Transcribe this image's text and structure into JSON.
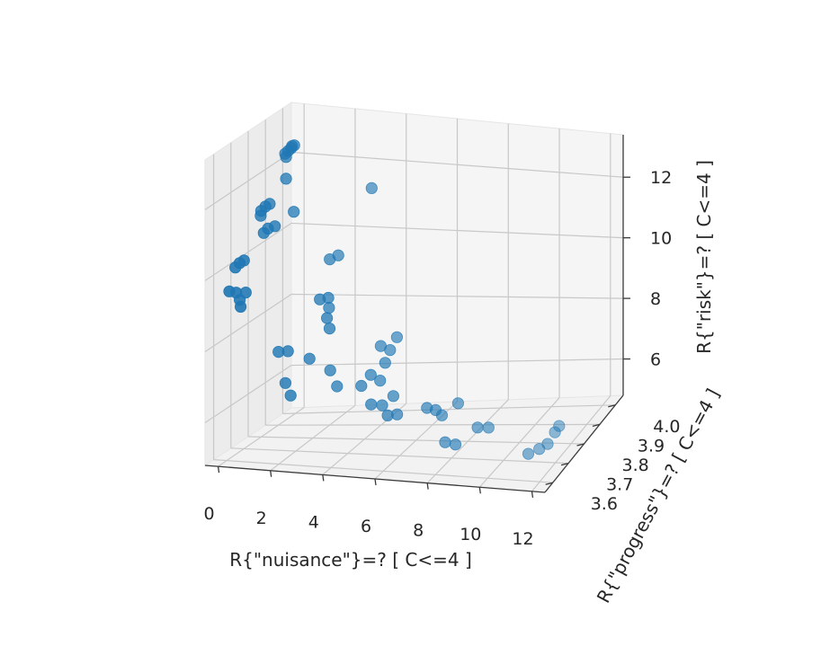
{
  "chart_data": {
    "type": "scatter",
    "projection": "3d",
    "xlabel": "R{\"nuisance\"}=? [ C<=4 ]",
    "ylabel": "R{\"progress\"}=? [ C<=4 ]",
    "zlabel": "R{\"risk\"}=? [ C<=4 ]",
    "x_ticks": [
      "0",
      "2",
      "4",
      "6",
      "8",
      "10",
      "12"
    ],
    "y_ticks": [
      "3.6",
      "3.7",
      "3.8",
      "3.9",
      "4.0"
    ],
    "z_ticks": [
      "6",
      "8",
      "10",
      "12"
    ],
    "xlim": [
      -0.5,
      12.5
    ],
    "ylim": [
      3.55,
      4.05
    ],
    "zlim": [
      4.8,
      13.4
    ],
    "grid": true,
    "marker_color": "#1f77b4",
    "points": [
      {
        "x": 0.05,
        "y": 3.95,
        "z": 12.4
      },
      {
        "x": 0.1,
        "y": 3.96,
        "z": 12.45
      },
      {
        "x": 0.15,
        "y": 3.97,
        "z": 12.5
      },
      {
        "x": 0.0,
        "y": 3.94,
        "z": 12.35
      },
      {
        "x": 0.2,
        "y": 3.95,
        "z": 12.55
      },
      {
        "x": 0.1,
        "y": 3.93,
        "z": 12.3
      },
      {
        "x": 0.3,
        "y": 3.9,
        "z": 11.8
      },
      {
        "x": 0.8,
        "y": 3.87,
        "z": 11.0
      },
      {
        "x": 0.0,
        "y": 3.8,
        "z": 11.2
      },
      {
        "x": 0.1,
        "y": 3.81,
        "z": 11.3
      },
      {
        "x": 0.2,
        "y": 3.82,
        "z": 11.35
      },
      {
        "x": 0.05,
        "y": 3.79,
        "z": 11.1
      },
      {
        "x": 0.4,
        "y": 3.78,
        "z": 10.8
      },
      {
        "x": 0.3,
        "y": 3.77,
        "z": 10.7
      },
      {
        "x": 0.6,
        "y": 3.79,
        "z": 10.85
      },
      {
        "x": 0.0,
        "y": 3.65,
        "z": 10.1
      },
      {
        "x": 0.1,
        "y": 3.66,
        "z": 10.2
      },
      {
        "x": 0.2,
        "y": 3.67,
        "z": 10.25
      },
      {
        "x": 0.1,
        "y": 3.6,
        "z": 9.6
      },
      {
        "x": 0.3,
        "y": 3.61,
        "z": 9.55
      },
      {
        "x": 0.5,
        "y": 3.6,
        "z": 9.4
      },
      {
        "x": 0.6,
        "y": 3.62,
        "z": 9.55
      },
      {
        "x": 0.6,
        "y": 3.59,
        "z": 9.25
      },
      {
        "x": 2.0,
        "y": 3.9,
        "z": 9.6
      },
      {
        "x": 2.2,
        "y": 3.92,
        "z": 9.65
      },
      {
        "x": 2.6,
        "y": 3.75,
        "z": 9.05
      },
      {
        "x": 2.6,
        "y": 3.8,
        "z": 8.9
      },
      {
        "x": 2.3,
        "y": 3.85,
        "z": 8.4
      },
      {
        "x": 3.2,
        "y": 3.7,
        "z": 8.75
      },
      {
        "x": 3.3,
        "y": 3.7,
        "z": 8.45
      },
      {
        "x": 3.5,
        "y": 3.92,
        "z": 11.7
      },
      {
        "x": 1.2,
        "y": 3.72,
        "z": 7.55
      },
      {
        "x": 1.5,
        "y": 3.73,
        "z": 7.55
      },
      {
        "x": 2.2,
        "y": 3.75,
        "z": 7.3
      },
      {
        "x": 1.6,
        "y": 3.7,
        "z": 6.75
      },
      {
        "x": 1.8,
        "y": 3.7,
        "z": 6.4
      },
      {
        "x": 3.0,
        "y": 3.75,
        "z": 7.0
      },
      {
        "x": 3.2,
        "y": 3.76,
        "z": 6.5
      },
      {
        "x": 4.5,
        "y": 3.82,
        "z": 7.5
      },
      {
        "x": 4.8,
        "y": 3.83,
        "z": 7.35
      },
      {
        "x": 4.8,
        "y": 3.8,
        "z": 7.1
      },
      {
        "x": 5.0,
        "y": 3.84,
        "z": 7.7
      },
      {
        "x": 4.2,
        "y": 3.75,
        "z": 6.6
      },
      {
        "x": 4.5,
        "y": 3.76,
        "z": 6.9
      },
      {
        "x": 4.8,
        "y": 3.77,
        "z": 6.7
      },
      {
        "x": 4.9,
        "y": 3.7,
        "z": 6.3
      },
      {
        "x": 5.2,
        "y": 3.72,
        "z": 6.2
      },
      {
        "x": 5.5,
        "y": 3.74,
        "z": 6.4
      },
      {
        "x": 5.6,
        "y": 3.69,
        "z": 6.05
      },
      {
        "x": 5.9,
        "y": 3.7,
        "z": 6.05
      },
      {
        "x": 6.8,
        "y": 3.74,
        "z": 6.1
      },
      {
        "x": 7.2,
        "y": 3.73,
        "z": 6.1
      },
      {
        "x": 7.5,
        "y": 3.72,
        "z": 6.0
      },
      {
        "x": 8.0,
        "y": 3.74,
        "z": 6.3
      },
      {
        "x": 8.0,
        "y": 3.66,
        "z": 5.5
      },
      {
        "x": 8.4,
        "y": 3.66,
        "z": 5.45
      },
      {
        "x": 9.0,
        "y": 3.7,
        "z": 5.8
      },
      {
        "x": 9.3,
        "y": 3.72,
        "z": 5.7
      },
      {
        "x": 11.2,
        "y": 3.66,
        "z": 5.3
      },
      {
        "x": 11.5,
        "y": 3.68,
        "z": 5.35
      },
      {
        "x": 11.7,
        "y": 3.7,
        "z": 5.4
      },
      {
        "x": 11.8,
        "y": 3.73,
        "z": 5.6
      },
      {
        "x": 11.9,
        "y": 3.74,
        "z": 5.75
      }
    ]
  }
}
